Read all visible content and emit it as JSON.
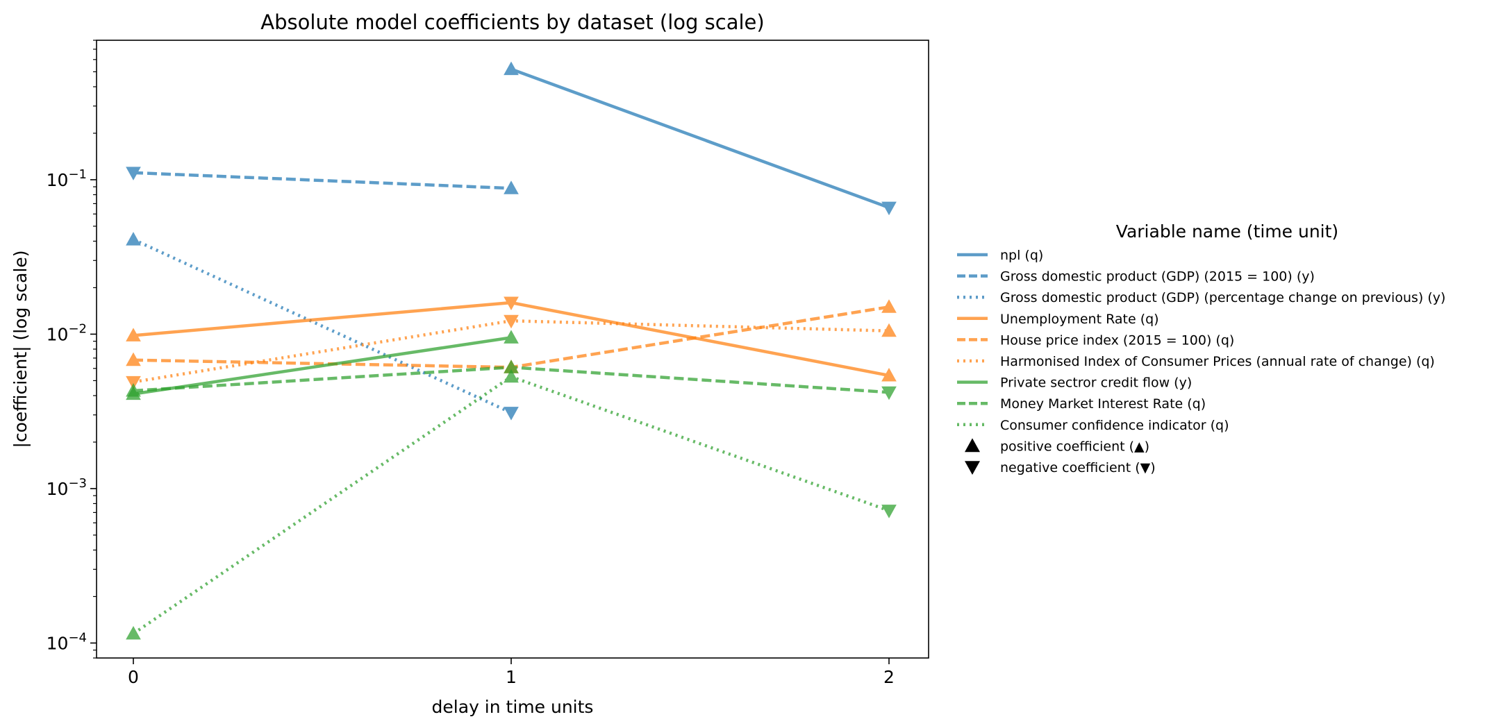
{
  "chart_data": {
    "type": "line",
    "title": "Absolute model coefficients by dataset (log scale)",
    "xlabel": "delay in time units",
    "ylabel": "|coefficient| (log scale)",
    "yscale": "log",
    "ylim": [
      8e-05,
      0.8
    ],
    "xlim": [
      -0.1,
      2.1
    ],
    "x_ticks": [
      0,
      1,
      2
    ],
    "y_ticks": [
      {
        "value": 0.1,
        "base": "10",
        "exp": "−1"
      },
      {
        "value": 0.01,
        "base": "10",
        "exp": "−2"
      },
      {
        "value": 0.001,
        "base": "10",
        "exp": "−3"
      },
      {
        "value": 0.0001,
        "base": "10",
        "exp": "−4"
      }
    ],
    "grid": false,
    "legend": {
      "title": "Variable name (time unit)",
      "placement": "outside right",
      "marker_entries": [
        {
          "marker": "up",
          "label": "positive coefficient (▲)"
        },
        {
          "marker": "down",
          "label": "negative coefficient (▼)"
        }
      ]
    },
    "series": [
      {
        "name": "npl (q)",
        "color": "#1f77b4",
        "dash": "solid",
        "points": [
          {
            "x": 1,
            "y": 0.52,
            "sign": "positive"
          },
          {
            "x": 2,
            "y": 0.066,
            "sign": "negative"
          }
        ]
      },
      {
        "name": "Gross domestic product (GDP) (2015 = 100) (y)",
        "color": "#1f77b4",
        "dash": "dashed",
        "points": [
          {
            "x": 0,
            "y": 0.111,
            "sign": "negative"
          },
          {
            "x": 1,
            "y": 0.088,
            "sign": "positive"
          }
        ]
      },
      {
        "name": "Gross domestic product (GDP) (percentage change on previous) (y)",
        "color": "#1f77b4",
        "dash": "dotted",
        "points": [
          {
            "x": 0,
            "y": 0.041,
            "sign": "positive"
          },
          {
            "x": 1,
            "y": 0.0031,
            "sign": "negative"
          }
        ]
      },
      {
        "name": "Unemployment Rate (q)",
        "color": "#ff7f0e",
        "dash": "solid",
        "points": [
          {
            "x": 0,
            "y": 0.0098,
            "sign": "positive"
          },
          {
            "x": 1,
            "y": 0.016,
            "sign": "negative"
          },
          {
            "x": 2,
            "y": 0.0054,
            "sign": "positive"
          }
        ]
      },
      {
        "name": "House price index (2015 = 100) (q)",
        "color": "#ff7f0e",
        "dash": "dashed",
        "points": [
          {
            "x": 0,
            "y": 0.0068,
            "sign": "positive"
          },
          {
            "x": 1,
            "y": 0.0061,
            "sign": "positive"
          },
          {
            "x": 2,
            "y": 0.015,
            "sign": "positive"
          }
        ]
      },
      {
        "name": "Harmonised Index of Consumer Prices (annual rate of change) (q)",
        "color": "#ff7f0e",
        "dash": "dotted",
        "points": [
          {
            "x": 0,
            "y": 0.0049,
            "sign": "negative"
          },
          {
            "x": 1,
            "y": 0.0122,
            "sign": "negative"
          },
          {
            "x": 2,
            "y": 0.0105,
            "sign": "positive"
          }
        ]
      },
      {
        "name": "Private sectror credit flow (y)",
        "color": "#2ca02c",
        "dash": "solid",
        "points": [
          {
            "x": 0,
            "y": 0.0041,
            "sign": "positive"
          },
          {
            "x": 1,
            "y": 0.0095,
            "sign": "positive"
          }
        ]
      },
      {
        "name": "Money Market Interest Rate (q)",
        "color": "#2ca02c",
        "dash": "dashed",
        "points": [
          {
            "x": 0,
            "y": 0.0043,
            "sign": "positive"
          },
          {
            "x": 1,
            "y": 0.0061,
            "sign": "positive"
          },
          {
            "x": 2,
            "y": 0.0042,
            "sign": "negative"
          }
        ]
      },
      {
        "name": "Consumer confidence indicator (q)",
        "color": "#2ca02c",
        "dash": "dotted",
        "points": [
          {
            "x": 0,
            "y": 0.000115,
            "sign": "positive"
          },
          {
            "x": 1,
            "y": 0.0053,
            "sign": "positive"
          },
          {
            "x": 2,
            "y": 0.00072,
            "sign": "negative"
          }
        ]
      }
    ]
  }
}
